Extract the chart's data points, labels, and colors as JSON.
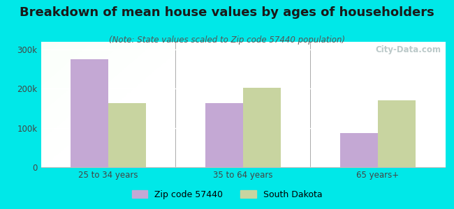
{
  "title": "Breakdown of mean house values by ages of householders",
  "subtitle": "(Note: State values scaled to Zip code 57440 population)",
  "categories": [
    "25 to 34 years",
    "35 to 64 years",
    "65 years+"
  ],
  "zip_values": [
    275000,
    163000,
    88000
  ],
  "state_values": [
    163000,
    203000,
    170000
  ],
  "zip_color": "#c4a8d4",
  "state_color": "#c8d4a0",
  "background_color": "#00e8e8",
  "ylim": [
    0,
    320000
  ],
  "yticks": [
    0,
    100000,
    200000,
    300000
  ],
  "ytick_labels": [
    "0",
    "100k",
    "200k",
    "300k"
  ],
  "legend_zip": "Zip code 57440",
  "legend_state": "South Dakota",
  "bar_width": 0.28,
  "title_fontsize": 13,
  "subtitle_fontsize": 8.5,
  "tick_fontsize": 8.5,
  "legend_fontsize": 9,
  "watermark": "City-Data.com"
}
